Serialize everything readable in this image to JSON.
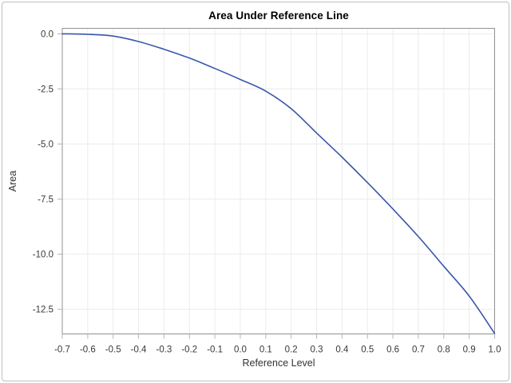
{
  "window": {
    "background": "#ffffff",
    "border_color": "#bfbfbf"
  },
  "chart_data": {
    "type": "line",
    "title": "Area Under Reference Line",
    "xlabel": "Reference Level",
    "ylabel": "Area",
    "series": [
      {
        "name": "Area",
        "x": [
          -0.7,
          -0.6,
          -0.5,
          -0.4,
          -0.3,
          -0.2,
          -0.1,
          0.0,
          0.1,
          0.2,
          0.3,
          0.4,
          0.5,
          0.6,
          0.7,
          0.8,
          0.9,
          1.0
        ],
        "y": [
          0.0,
          -0.02,
          -0.1,
          -0.35,
          -0.7,
          -1.1,
          -1.57,
          -2.07,
          -2.6,
          -3.4,
          -4.5,
          -5.6,
          -6.75,
          -7.95,
          -9.2,
          -10.55,
          -11.9,
          -13.6
        ]
      }
    ],
    "xlim": [
      -0.7,
      1.0
    ],
    "ylim": [
      -13.62,
      0.25
    ],
    "xticks": [
      -0.7,
      -0.6,
      -0.5,
      -0.4,
      -0.3,
      -0.2,
      -0.1,
      0.0,
      0.1,
      0.2,
      0.3,
      0.4,
      0.5,
      0.6,
      0.7,
      0.8,
      0.9,
      1.0
    ],
    "xtick_labels": [
      "-0.7",
      "-0.6",
      "-0.5",
      "-0.4",
      "-0.3",
      "-0.2",
      "-0.1",
      "0.0",
      "0.1",
      "0.2",
      "0.3",
      "0.4",
      "0.5",
      "0.6",
      "0.7",
      "0.8",
      "0.9",
      "1.0"
    ],
    "yticks": [
      0.0,
      -2.5,
      -5.0,
      -7.5,
      -10.0,
      -12.5
    ],
    "ytick_labels": [
      "0.0",
      "-2.5",
      "-5.0",
      "-7.5",
      "-10.0",
      "-12.5"
    ],
    "grid": true,
    "legend": "none",
    "styles": {
      "line_color": "#3757ad",
      "line_width": 1.6,
      "grid_color": "#ececec",
      "axis_color": "#919191",
      "tick_color": "#b5b5b5",
      "tick_label_color": "#383838",
      "axis_label_color": "#333333",
      "title_color": "#000000"
    }
  }
}
